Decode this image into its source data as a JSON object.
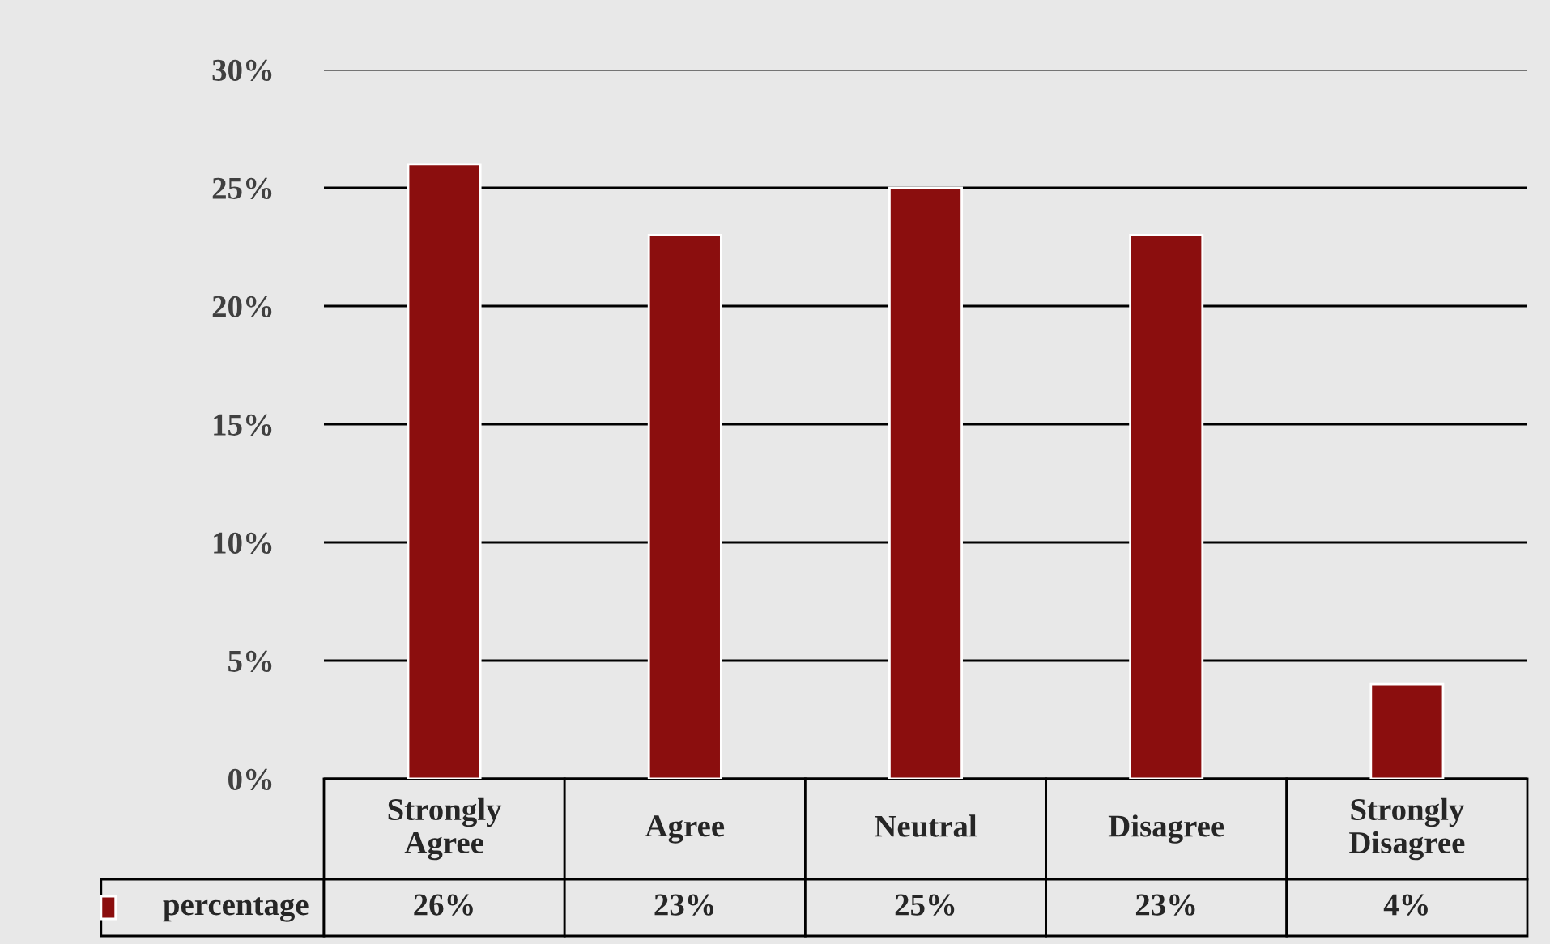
{
  "chart_data": {
    "type": "bar",
    "categories": [
      "Strongly\nAgree",
      "Agree",
      "Neutral",
      "Disagree",
      "Strongly\nDisagree"
    ],
    "series": [
      {
        "name": "percentage",
        "color": "#8b0e0e",
        "values": [
          26,
          23,
          25,
          23,
          4
        ],
        "value_labels": [
          "26%",
          "23%",
          "25%",
          "23%",
          "4%"
        ]
      }
    ],
    "ylim": [
      0,
      30
    ],
    "yticks": [
      {
        "value": 0,
        "label": "0%"
      },
      {
        "value": 5,
        "label": "5%"
      },
      {
        "value": 10,
        "label": "10%"
      },
      {
        "value": 15,
        "label": "15%"
      },
      {
        "value": 20,
        "label": "20%"
      },
      {
        "value": 25,
        "label": "25%"
      },
      {
        "value": 30,
        "label": "30%"
      }
    ],
    "grid": "y",
    "legend": "bottom left"
  }
}
